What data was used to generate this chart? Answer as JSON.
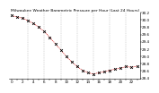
{
  "title": "Milwaukee Weather Barometric Pressure per Hour (Last 24 Hours)",
  "background_color": "#ffffff",
  "line_color": "#cc0000",
  "marker_color": "#000000",
  "grid_color": "#999999",
  "hours": [
    0,
    1,
    2,
    3,
    4,
    5,
    6,
    7,
    8,
    9,
    10,
    11,
    12,
    13,
    14,
    15,
    16,
    17,
    18,
    19,
    20,
    21,
    22,
    23
  ],
  "pressure": [
    30.12,
    30.08,
    30.05,
    29.98,
    29.9,
    29.8,
    29.68,
    29.52,
    29.35,
    29.18,
    29.0,
    28.85,
    28.72,
    28.62,
    28.55,
    28.52,
    28.55,
    28.58,
    28.62,
    28.65,
    28.68,
    28.72,
    28.7,
    28.73
  ],
  "ylim_min": 28.4,
  "ylim_max": 30.2,
  "ytick_step": 0.2,
  "title_fontsize": 3.2,
  "tick_fontsize": 3.0
}
